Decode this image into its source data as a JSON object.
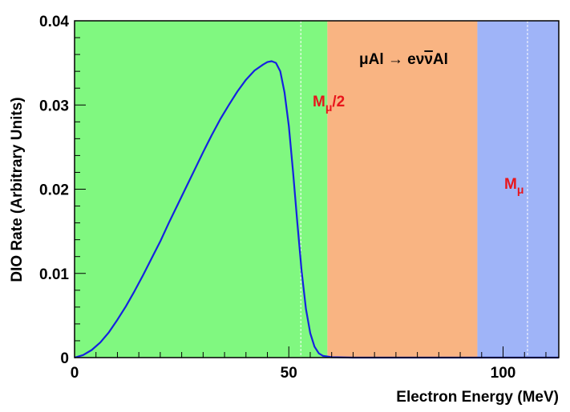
{
  "chart_data": {
    "type": "line",
    "xlabel": "Electron Energy (MeV)",
    "ylabel": "DIO Rate (Arbitrary Units)",
    "xlim": [
      0,
      113
    ],
    "ylim": [
      0,
      0.04
    ],
    "x_ticks": [
      0,
      50,
      100
    ],
    "x_tick_labels": [
      "0",
      "50",
      "100"
    ],
    "y_ticks": [
      0,
      0.01,
      0.02,
      0.03,
      0.04
    ],
    "y_tick_labels": [
      "0",
      "0.01",
      "0.02",
      "0.03",
      "0.04"
    ],
    "grid": false,
    "regions": [
      {
        "x_start": 0,
        "x_end": 59,
        "color": "#80f880"
      },
      {
        "x_start": 59,
        "x_end": 94,
        "color": "#f9b482"
      },
      {
        "x_start": 94,
        "x_end": 113,
        "color": "#9fb4f8"
      }
    ],
    "reference_lines": [
      {
        "x": 52.8,
        "label": "Mμ/2"
      },
      {
        "x": 105.7,
        "label": "Mμ"
      }
    ],
    "reaction_label": {
      "x": 66,
      "y": 0.0355
    },
    "series": [
      {
        "color": "#1522e0",
        "x": [
          0,
          2,
          4,
          6,
          8,
          10,
          12,
          14,
          16,
          18,
          20,
          22,
          24,
          26,
          28,
          30,
          32,
          34,
          36,
          38,
          40,
          42,
          44,
          45,
          46,
          47,
          48,
          49,
          50,
          51,
          52,
          53,
          54,
          55,
          56,
          57,
          58,
          60,
          65,
          113
        ],
        "y": [
          0,
          0.0003,
          0.0009,
          0.0018,
          0.003,
          0.0045,
          0.0061,
          0.0079,
          0.0098,
          0.0118,
          0.0138,
          0.016,
          0.0181,
          0.0202,
          0.0223,
          0.0244,
          0.0264,
          0.0283,
          0.03,
          0.0316,
          0.033,
          0.0341,
          0.0348,
          0.0351,
          0.0352,
          0.035,
          0.034,
          0.0315,
          0.0275,
          0.022,
          0.016,
          0.0102,
          0.0058,
          0.0029,
          0.0013,
          0.0005,
          0.0002,
          5e-05,
          0,
          0
        ]
      }
    ]
  }
}
